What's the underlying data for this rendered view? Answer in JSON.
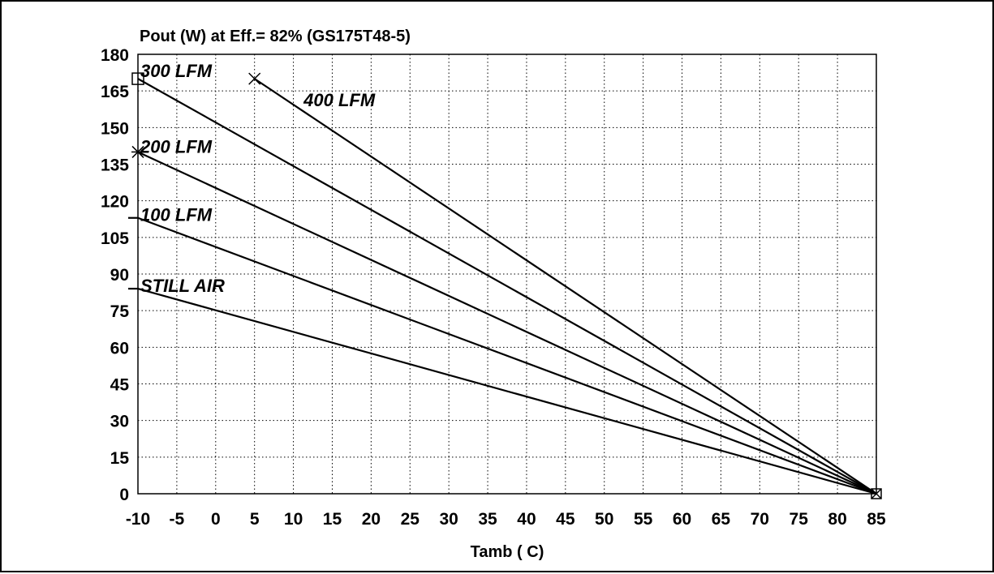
{
  "chart_data": {
    "type": "line",
    "title": "Pout (W) at Eff.= 82% (GS175T48-5)",
    "xlabel": "Tamb ( C)",
    "ylabel": "",
    "xlim": [
      -10,
      85
    ],
    "ylim": [
      0,
      180
    ],
    "x_ticks": [
      -10,
      -5,
      0,
      5,
      10,
      15,
      20,
      25,
      30,
      35,
      40,
      45,
      50,
      55,
      60,
      65,
      70,
      75,
      80,
      85
    ],
    "y_ticks": [
      0,
      15,
      30,
      45,
      60,
      75,
      90,
      105,
      120,
      135,
      150,
      165,
      180
    ],
    "grid": true,
    "series": [
      {
        "name": "400 LFM",
        "marker": "x",
        "x": [
          5,
          85
        ],
        "y": [
          170,
          0
        ],
        "label_at": [
          11,
          161
        ]
      },
      {
        "name": "300 LFM",
        "marker": "square",
        "x": [
          -10,
          85
        ],
        "y": [
          170,
          0
        ],
        "label_at": [
          -10,
          173
        ]
      },
      {
        "name": "200 LFM",
        "marker": "star",
        "x": [
          -10,
          85
        ],
        "y": [
          140,
          0
        ],
        "label_at": [
          -10,
          142
        ]
      },
      {
        "name": "100 LFM",
        "marker": "dash",
        "x": [
          -10,
          85
        ],
        "y": [
          113,
          0
        ],
        "label_at": [
          -10,
          114
        ]
      },
      {
        "name": "STILL AIR",
        "marker": "dash",
        "x": [
          -10,
          85
        ],
        "y": [
          84,
          0
        ],
        "label_at": [
          -10,
          85
        ]
      }
    ]
  }
}
